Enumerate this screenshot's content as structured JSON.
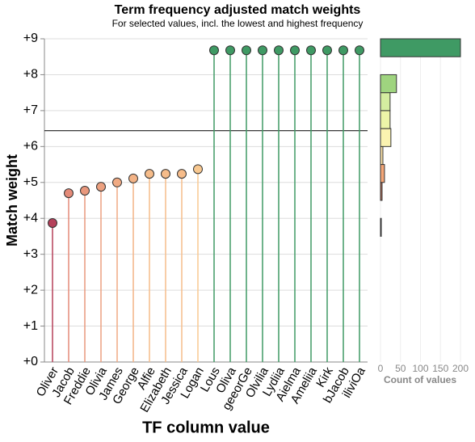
{
  "chart_data": [
    {
      "type": "lollipop",
      "title": "Term frequency adjusted match weights",
      "subtitle": "For selected values, incl. the lowest and highest frequency",
      "x_label": "TF column value",
      "y_label": "Match weight",
      "categories": [
        "Oliver",
        "Jacob",
        "Freddie",
        "Olivia",
        "James",
        "George",
        "Alfie",
        "Elizabeth",
        "Jessica",
        "Logan",
        "Lous",
        "Oliva",
        "geeorGe",
        "Olvilia",
        "Lydiia",
        "Aielma",
        "Ameliia",
        "Kirk",
        "bJacob",
        "iliviOa"
      ],
      "values": [
        3.87,
        4.7,
        4.77,
        4.88,
        5.0,
        5.11,
        5.24,
        5.24,
        5.24,
        5.37,
        8.68,
        8.68,
        8.68,
        8.68,
        8.68,
        8.68,
        8.68,
        8.68,
        8.68,
        8.68
      ],
      "colors": [
        "#b5405a",
        "#e48a78",
        "#e8977c",
        "#eca07f",
        "#f0aa83",
        "#f3b386",
        "#f6bc8a",
        "#f6bc8a",
        "#f6bc8a",
        "#f8c890",
        "#3f9a64",
        "#3f9a64",
        "#3f9a64",
        "#3f9a64",
        "#3f9a64",
        "#3f9a64",
        "#3f9a64",
        "#3f9a64",
        "#3f9a64",
        "#3f9a64"
      ],
      "reference_line": 6.44,
      "ylim": [
        0,
        9
      ],
      "yticks": [
        {
          "value": 0,
          "label": "+0"
        },
        {
          "value": 1,
          "label": "+1"
        },
        {
          "value": 2,
          "label": "+2"
        },
        {
          "value": 3,
          "label": "+3"
        },
        {
          "value": 4,
          "label": "+4"
        },
        {
          "value": 5,
          "label": "+5"
        },
        {
          "value": 6,
          "label": "+6"
        },
        {
          "value": 7,
          "label": "+7"
        },
        {
          "value": 8,
          "label": "+8"
        },
        {
          "value": 9,
          "label": "+9"
        }
      ],
      "grid": true
    },
    {
      "type": "histogram",
      "orientation": "horizontal",
      "x_label": "Count of values",
      "bins": [
        3.5,
        4,
        4.5,
        5,
        5.5,
        6,
        6.5,
        7,
        7.5,
        8,
        8.5,
        9
      ],
      "counts": [
        1,
        0,
        4,
        10,
        6,
        26,
        24,
        24,
        40,
        0,
        200
      ],
      "colors": [
        "#b5405a",
        "#b9725a",
        "#b9725a",
        "#f4a677",
        "#fde3a8",
        "#fbf3b0",
        "#edf5a8",
        "#d4eda0",
        "#9fd47f",
        "#6fb878",
        "#3f9a64"
      ],
      "xlim": [
        0,
        200
      ],
      "xticks": [
        0,
        50,
        100,
        150,
        200
      ],
      "ylim": [
        0,
        9
      ],
      "grid": true
    }
  ]
}
